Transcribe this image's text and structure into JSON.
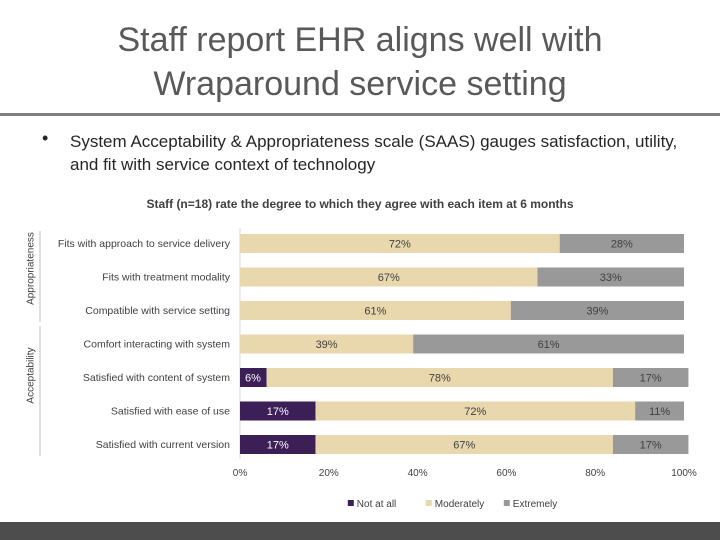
{
  "slide": {
    "title_line1": "Staff report EHR aligns well with",
    "title_line2": "Wraparound service setting",
    "bullet_symbol": "•",
    "bullet_text": "System Acceptability & Appropriateness scale (SAAS) gauges satisfaction, utility, and fit with service context of technology"
  },
  "colors": {
    "not_at_all": "#3b1f56",
    "moderately": "#e9d7ae",
    "extremely": "#999999",
    "title": "#595959",
    "rule": "#7f7f7f"
  },
  "chart_data": {
    "type": "bar",
    "orientation": "horizontal",
    "stacked": true,
    "title": "Staff (n=18) rate the degree to which they agree with each item at 6 months",
    "categories": [
      "Fits with approach to service delivery",
      "Fits with treatment modality",
      "Compatible with service setting",
      "Comfort interacting with system",
      "Satisfied with content of system",
      "Satisfied with ease of use",
      "Satisfied with current version"
    ],
    "groups": [
      {
        "label": "Appropriateness",
        "categories": [
          0,
          1,
          2
        ]
      },
      {
        "label": "Acceptability",
        "categories": [
          3,
          4,
          5,
          6
        ]
      }
    ],
    "series": [
      {
        "name": "Not at all",
        "color": "#3b1f56",
        "values": [
          0,
          0,
          0,
          0,
          6,
          17,
          17
        ],
        "labels": [
          "",
          "",
          "",
          "",
          "6%",
          "17%",
          "17%"
        ]
      },
      {
        "name": "Moderately",
        "color": "#e9d7ae",
        "values": [
          72,
          67,
          61,
          39,
          78,
          72,
          67
        ],
        "labels": [
          "72%",
          "67%",
          "61%",
          "39%",
          "78%",
          "72%",
          "67%"
        ]
      },
      {
        "name": "Extremely",
        "color": "#999999",
        "values": [
          28,
          33,
          39,
          61,
          17,
          11,
          17
        ],
        "labels": [
          "28%",
          "33%",
          "39%",
          "61%",
          "17%",
          "11%",
          "17%"
        ]
      }
    ],
    "xlim": [
      0,
      100
    ],
    "xticks": [
      0,
      20,
      40,
      60,
      80,
      100
    ],
    "xtick_labels": [
      "0%",
      "20%",
      "40%",
      "60%",
      "80%",
      "100%"
    ],
    "legend_position": "bottom",
    "grid": false
  }
}
